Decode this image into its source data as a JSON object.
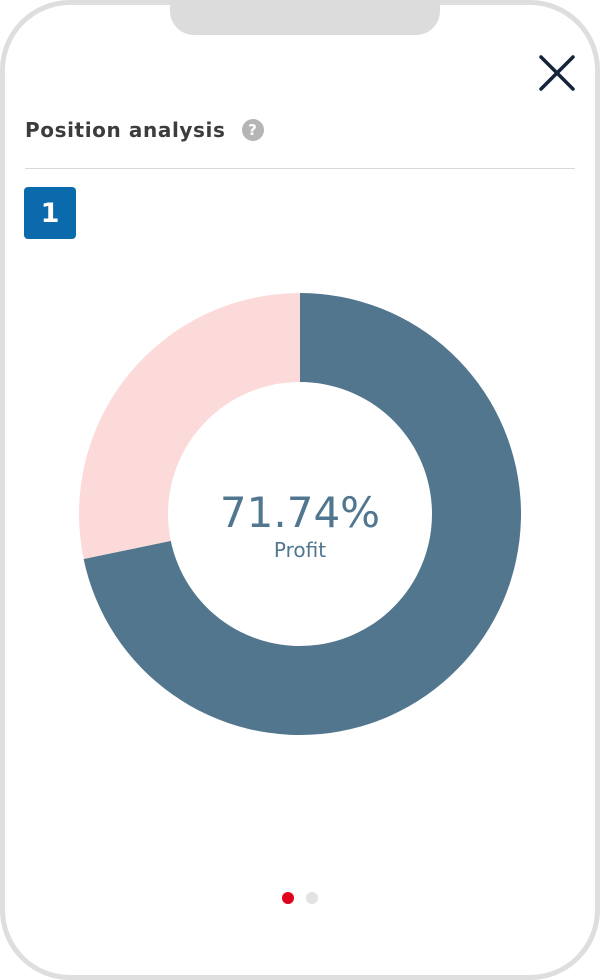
{
  "header": {
    "title": "Position analysis",
    "help_icon": "?",
    "close_icon": "close-icon"
  },
  "badge": {
    "label": "1"
  },
  "colors": {
    "profit": "#51768d",
    "remainder": "#fcdada",
    "badge": "#0b6aab",
    "pager_active": "#e0001b",
    "pager_inactive": "#e3e3e3"
  },
  "chart_data": {
    "type": "pie",
    "categories": [
      "Profit",
      ""
    ],
    "values": [
      71.74,
      28.26
    ],
    "center_value": "71.74%",
    "center_label": "Profit"
  },
  "pager": {
    "pages": 2,
    "active": 0
  }
}
